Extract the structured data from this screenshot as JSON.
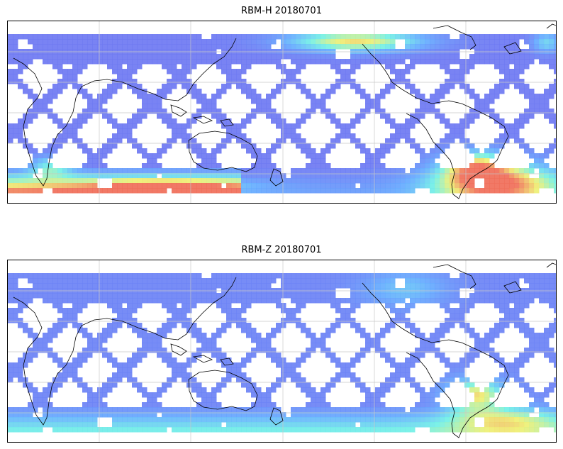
{
  "panels": [
    {
      "title": "RBM-H 20180701"
    },
    {
      "title": "RBM-Z 20180701"
    }
  ],
  "colors": {
    "low": "#6b6cf0",
    "mid_low": "#62a8ff",
    "mid": "#6ef0e6",
    "mid_high": "#eef070",
    "high": "#f06a55",
    "coastline": "#000000",
    "grid": "#c8c8c8"
  }
}
